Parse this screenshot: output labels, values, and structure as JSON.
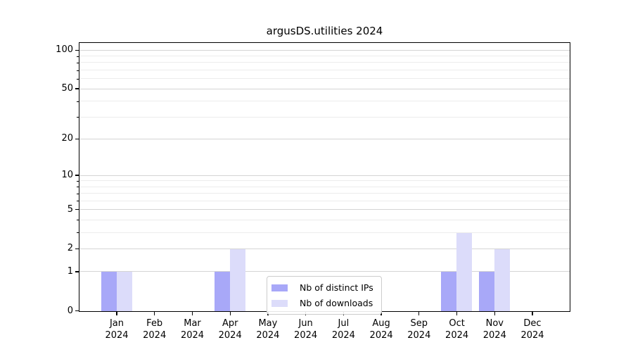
{
  "chart_data": {
    "type": "bar",
    "title": "argusDS.utilities 2024",
    "categories": [
      "Jan",
      "Feb",
      "Mar",
      "Apr",
      "May",
      "Jun",
      "Jul",
      "Aug",
      "Sep",
      "Oct",
      "Nov",
      "Dec"
    ],
    "year_label": "2024",
    "series": [
      {
        "name": "Nb of distinct IPs",
        "color": "#a8a8f8",
        "values": [
          1,
          0,
          0,
          1,
          0,
          0,
          0,
          0,
          0,
          1,
          1,
          0
        ]
      },
      {
        "name": "Nb of downloads",
        "color": "#dcdcfa",
        "values": [
          1,
          0,
          0,
          2,
          0,
          0,
          0,
          0,
          0,
          3,
          2,
          0
        ]
      }
    ],
    "xlabel": "",
    "ylabel": "",
    "y_scale": "log1p",
    "ylim": [
      0,
      113
    ],
    "y_major_ticks": [
      0,
      1,
      2,
      5,
      10,
      20,
      50,
      100
    ],
    "y_minor_ticks": [
      3,
      4,
      6,
      7,
      8,
      9,
      30,
      40,
      60,
      70,
      80,
      90
    ],
    "grid": true,
    "legend_position": "lower center"
  },
  "colors": {
    "bar_distinct_ips": "#a8a8f8",
    "bar_downloads": "#dcdcfa",
    "grid_major": "#d4d4d4",
    "grid_minor": "#ececec",
    "spine": "#000000",
    "legend_border": "#cccccc",
    "background": "#ffffff",
    "text": "#000000"
  }
}
